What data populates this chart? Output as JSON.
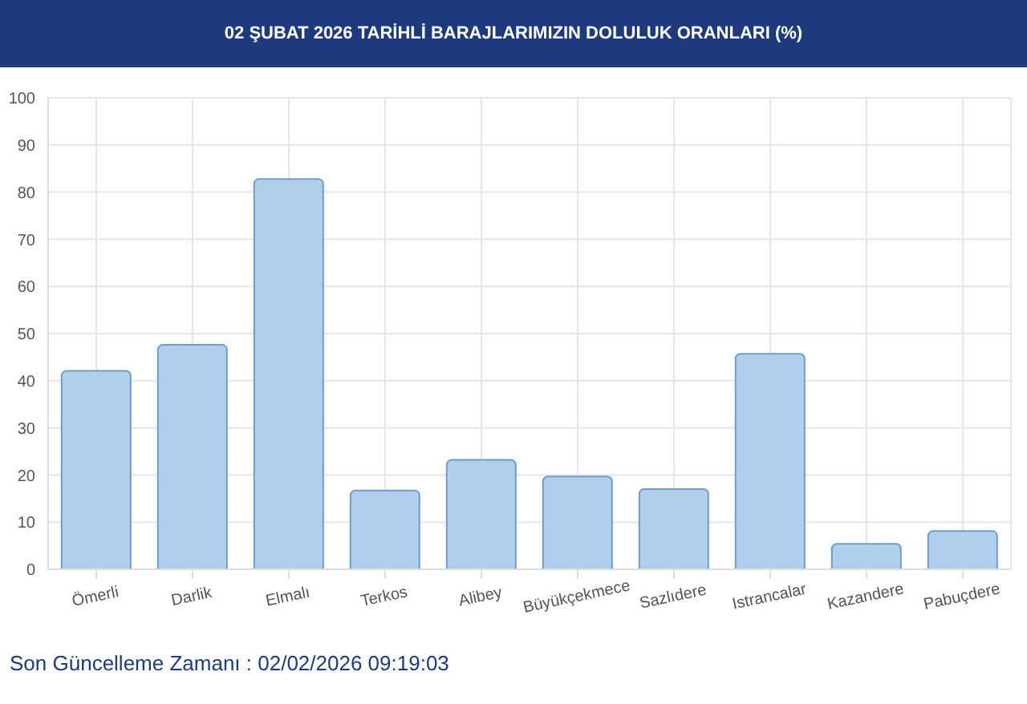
{
  "chart_data": {
    "type": "bar",
    "title": "02 ŞUBAT 2026 TARİHLİ BARAJLARIMIZIN DOLULUK ORANLARI (%)",
    "categories": [
      "Ömerli",
      "Darlik",
      "Elmalı",
      "Terkos",
      "Alibey",
      "Büyükçekmece",
      "Sazlıdere",
      "Istrancalar",
      "Kazandere",
      "Pabuçdere"
    ],
    "values": [
      42.1,
      47.6,
      82.8,
      16.7,
      23.2,
      19.7,
      17.0,
      45.7,
      5.4,
      8.1
    ],
    "color": "#b0cfec",
    "ylim": [
      0,
      100
    ],
    "yticks": [
      0,
      10,
      20,
      30,
      40,
      50,
      60,
      70,
      80,
      90,
      100
    ],
    "grid": true,
    "annotations": [
      "Son Güncelleme Zamanı : 02/02/2026 09:19:03"
    ]
  }
}
